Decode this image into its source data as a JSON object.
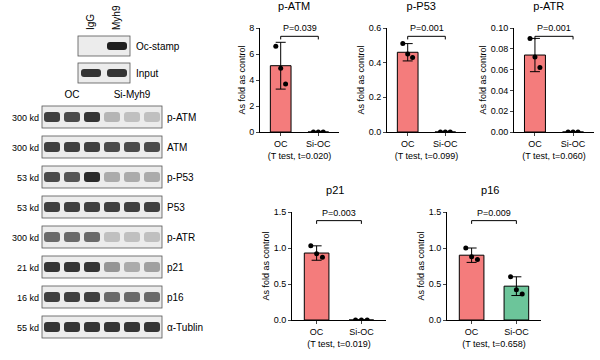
{
  "ip_blot": {
    "lanes": [
      "IgG",
      "Myh9"
    ],
    "rows": [
      {
        "label": "Oc-stamp",
        "bands": [
          0,
          0.95
        ]
      },
      {
        "label": "Input",
        "bands": [
          0.85,
          0.85
        ]
      }
    ]
  },
  "blot": {
    "groups": [
      {
        "label": "OC",
        "lanes": 3
      },
      {
        "label": "Si-Myh9",
        "lanes": 3
      }
    ],
    "rows": [
      {
        "size": "300 kd",
        "label": "p-ATM",
        "bands": [
          0.8,
          0.75,
          0.85,
          0.25,
          0.2,
          0.2
        ]
      },
      {
        "size": "300 kd",
        "label": "ATM",
        "bands": [
          0.8,
          0.8,
          0.8,
          0.75,
          0.75,
          0.75
        ]
      },
      {
        "size": "53 kd",
        "label": "p-P53",
        "bands": [
          0.75,
          0.7,
          0.9,
          0.3,
          0.3,
          0.3
        ]
      },
      {
        "size": "53 kd",
        "label": "P53",
        "bands": [
          0.8,
          0.8,
          0.8,
          0.8,
          0.8,
          0.8
        ]
      },
      {
        "size": "300 kd",
        "label": "p-ATR",
        "bands": [
          0.6,
          0.6,
          0.6,
          0.2,
          0.2,
          0.2
        ]
      },
      {
        "size": "21 kd",
        "label": "p21",
        "bands": [
          0.85,
          0.85,
          0.85,
          0.4,
          0.3,
          0.35
        ]
      },
      {
        "size": "16 kd",
        "label": "p16",
        "bands": [
          0.8,
          0.8,
          0.8,
          0.6,
          0.6,
          0.6
        ]
      },
      {
        "size": "55 kd",
        "label": "α-Tublin",
        "bands": [
          0.85,
          0.85,
          0.85,
          0.85,
          0.85,
          0.85
        ]
      }
    ]
  },
  "chart_data": [
    {
      "type": "bar",
      "title": "p-ATM",
      "ylabel": "As fold as control",
      "xlabel": "(T test, t=0.020)",
      "categories": [
        "OC",
        "Si-OC"
      ],
      "values": [
        5.1,
        0
      ],
      "errors": [
        1.8,
        0
      ],
      "points": [
        [
          6.6,
          4.9,
          3.7
        ],
        [
          0,
          0,
          0
        ]
      ],
      "colors": [
        "#f47c7c",
        "#6cc59a"
      ],
      "ylim": [
        0,
        8
      ],
      "yticks": [
        0,
        2,
        4,
        6,
        8
      ],
      "grid": false,
      "annotation": "P=0.039"
    },
    {
      "type": "bar",
      "title": "p-P53",
      "ylabel": "As fold as control",
      "xlabel": "(T test, t=0.099)",
      "categories": [
        "OC",
        "Si-OC"
      ],
      "values": [
        0.46,
        0
      ],
      "errors": [
        0.05,
        0
      ],
      "points": [
        [
          0.51,
          0.45,
          0.43
        ],
        [
          0,
          0,
          0
        ]
      ],
      "colors": [
        "#f47c7c",
        "#6cc59a"
      ],
      "ylim": [
        0,
        0.6
      ],
      "yticks": [
        {
          "value": 0,
          "label": "0.0"
        },
        0.2,
        0.4,
        0.6
      ],
      "grid": false,
      "annotation": "P=0.001"
    },
    {
      "type": "bar",
      "title": "p-ATR",
      "ylabel": "As fold as control",
      "xlabel": "(T test, t=0.060)",
      "categories": [
        "OC",
        "Si-OC"
      ],
      "values": [
        0.074,
        0
      ],
      "errors": [
        0.016,
        0
      ],
      "points": [
        [
          0.09,
          0.072,
          0.062
        ],
        [
          0,
          0,
          0
        ]
      ],
      "colors": [
        "#f47c7c",
        "#6cc59a"
      ],
      "ylim": [
        0,
        0.1
      ],
      "yticks": [
        {
          "value": 0,
          "label": "0.00"
        },
        0.02,
        0.04,
        0.06,
        0.08,
        {
          "value": 0.1,
          "label": "0.10"
        }
      ],
      "grid": false,
      "annotation": "P=0.001"
    },
    {
      "type": "bar",
      "title": "p21",
      "ylabel": "As fold as control",
      "xlabel": "(T test, t=0.019)",
      "categories": [
        "OC",
        "Si-OC"
      ],
      "values": [
        0.93,
        0
      ],
      "errors": [
        0.1,
        0
      ],
      "points": [
        [
          1.03,
          0.92,
          0.87
        ],
        [
          0,
          0,
          0
        ]
      ],
      "colors": [
        "#f47c7c",
        "#6cc59a"
      ],
      "ylim": [
        0,
        1.5
      ],
      "yticks": [
        {
          "value": 0,
          "label": "0.0"
        },
        0.5,
        {
          "value": 1,
          "label": "1.0"
        },
        1.5
      ],
      "grid": false,
      "annotation": "P=0.003"
    },
    {
      "type": "bar",
      "title": "p16",
      "ylabel": "As fold as control",
      "xlabel": "(T test, t=0.658)",
      "categories": [
        "OC",
        "Si-OC"
      ],
      "values": [
        0.9,
        0.47
      ],
      "errors": [
        0.1,
        0.13
      ],
      "points": [
        [
          1.0,
          0.88,
          0.84
        ],
        [
          0.6,
          0.42,
          0.36
        ]
      ],
      "colors": [
        "#f47c7c",
        "#6cc59a"
      ],
      "ylim": [
        0,
        1.5
      ],
      "yticks": [
        {
          "value": 0,
          "label": "0.0"
        },
        0.5,
        {
          "value": 1,
          "label": "1.0"
        },
        1.5
      ],
      "grid": false,
      "annotation": "P=0.009"
    }
  ]
}
